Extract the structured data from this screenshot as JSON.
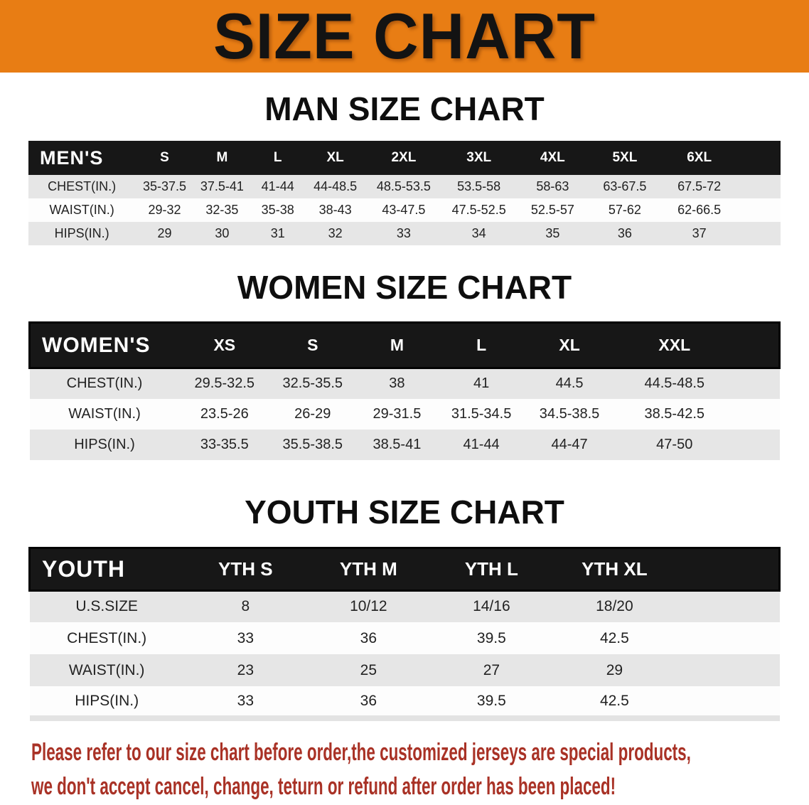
{
  "banner": {
    "title": "SIZE CHART"
  },
  "colors": {
    "banner_bg": "#e87d14",
    "header_bg": "#171717",
    "row_alt": "#e6e6e6",
    "footer_text": "#a93226"
  },
  "sections": [
    {
      "id": "men",
      "title": "MAN SIZE CHART",
      "table": {
        "headers": [
          "MEN'S",
          "S",
          "M",
          "L",
          "XL",
          "2XL",
          "3XL",
          "4XL",
          "5XL",
          "6XL"
        ],
        "rows": [
          {
            "label": "CHEST(IN.)",
            "values": [
              "35-37.5",
              "37.5-41",
              "41-44",
              "44-48.5",
              "48.5-53.5",
              "53.5-58",
              "58-63",
              "63-67.5",
              "67.5-72"
            ]
          },
          {
            "label": "WAIST(IN.)",
            "values": [
              "29-32",
              "32-35",
              "35-38",
              "38-43",
              "43-47.5",
              "47.5-52.5",
              "52.5-57",
              "57-62",
              "62-66.5"
            ]
          },
          {
            "label": "HIPS(IN.)",
            "values": [
              "29",
              "30",
              "31",
              "32",
              "33",
              "34",
              "35",
              "36",
              "37"
            ]
          }
        ]
      }
    },
    {
      "id": "women",
      "title": "WOMEN SIZE CHART",
      "table": {
        "headers": [
          "WOMEN'S",
          "XS",
          "S",
          "M",
          "L",
          "XL",
          "XXL"
        ],
        "rows": [
          {
            "label": "CHEST(IN.)",
            "values": [
              "29.5-32.5",
              "32.5-35.5",
              "38",
              "41",
              "44.5",
              "44.5-48.5"
            ]
          },
          {
            "label": "WAIST(IN.)",
            "values": [
              "23.5-26",
              "26-29",
              "29-31.5",
              "31.5-34.5",
              "34.5-38.5",
              "38.5-42.5"
            ]
          },
          {
            "label": "HIPS(IN.)",
            "values": [
              "33-35.5",
              "35.5-38.5",
              "38.5-41",
              "41-44",
              "44-47",
              "47-50"
            ]
          }
        ]
      }
    },
    {
      "id": "youth",
      "title": "YOUTH SIZE CHART",
      "table": {
        "headers": [
          "YOUTH",
          "YTH S",
          "YTH M",
          "YTH L",
          "YTH XL"
        ],
        "rows": [
          {
            "label": "U.S.SIZE",
            "values": [
              "8",
              "10/12",
              "14/16",
              "18/20"
            ]
          },
          {
            "label": "CHEST(IN.)",
            "values": [
              "33",
              "36",
              "39.5",
              "42.5"
            ]
          },
          {
            "label": "WAIST(IN.)",
            "values": [
              "23",
              "25",
              "27",
              "29"
            ]
          },
          {
            "label": "HIPS(IN.)",
            "values": [
              "33",
              "36",
              "39.5",
              "42.5"
            ]
          }
        ]
      }
    }
  ],
  "footer": {
    "lines": [
      "Please refer to our size chart before order,the customized jerseys are special products,",
      "we don't accept cancel, change, teturn or refund after order has been placed!"
    ]
  }
}
